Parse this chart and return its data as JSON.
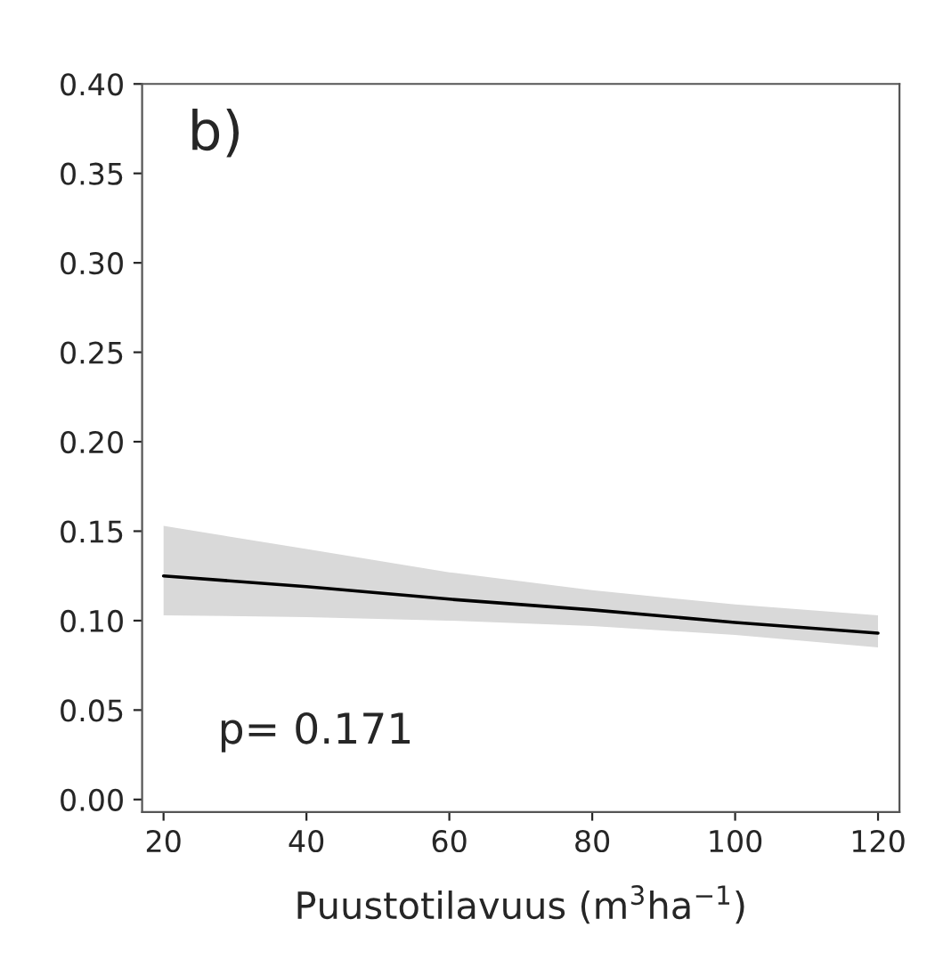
{
  "chart_data": {
    "type": "line",
    "xlabel": "Puustotilavuus (m$^{3}$ha$^{−1}$)",
    "annotations": [
      "b)",
      "p= 0.171"
    ],
    "x": [
      20,
      40,
      60,
      80,
      100,
      120
    ],
    "series": [
      {
        "color": "#000000",
        "values": [
          0.125,
          0.119,
          0.112,
          0.106,
          0.099,
          0.093
        ],
        "lower": [
          0.103,
          0.102,
          0.1,
          0.097,
          0.092,
          0.085
        ],
        "upper": [
          0.153,
          0.14,
          0.127,
          0.117,
          0.109,
          0.103
        ]
      }
    ],
    "xlim": [
      17,
      123
    ],
    "xticks": [
      20,
      40,
      60,
      80,
      100,
      120
    ],
    "ylim": [
      -0.007,
      0.4
    ],
    "yticks": [
      {
        "value": 0,
        "label": "0.00"
      },
      {
        "value": 0.05,
        "label": "0.05"
      },
      {
        "value": 0.1,
        "label": "0.10"
      },
      {
        "value": 0.15,
        "label": "0.15"
      },
      {
        "value": 0.2,
        "label": "0.20"
      },
      {
        "value": 0.25,
        "label": "0.25"
      },
      {
        "value": 0.3,
        "label": "0.30"
      },
      {
        "value": 0.35,
        "label": "0.35"
      },
      {
        "value": 0.4,
        "label": "0.40"
      }
    ],
    "grid": false,
    "legend": false
  }
}
